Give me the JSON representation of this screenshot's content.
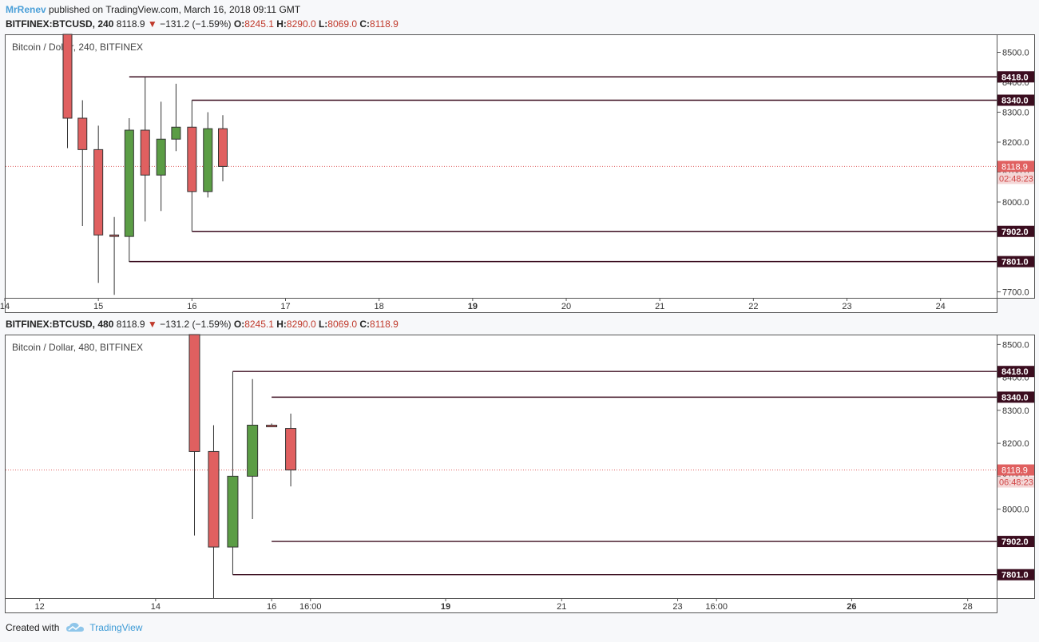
{
  "header": {
    "author": "MrRenev",
    "published_text": "published on TradingView.com, March 16, 2018 09:11 GMT"
  },
  "footer": {
    "created_with": "Created with",
    "brand": "TradingView"
  },
  "colors": {
    "up": "#5b9d45",
    "down": "#e06060",
    "level_line": "#3b0d1f",
    "level_label_bg": "#3b0d1f",
    "last_price": "#e06060"
  },
  "chart_data": [
    {
      "type": "candlestick",
      "symbol": "BITFINEX:BTCUSD",
      "interval": "240",
      "last": "8118.9",
      "change": "−131.2 (−1.59%)",
      "open": "8245.1",
      "high": "8290.0",
      "low": "8069.0",
      "close": "8118.9",
      "legend": "Bitcoin / Dollar, 240, BITFINEX",
      "ylim": [
        7680,
        8560
      ],
      "yticks": [
        7700,
        7800,
        7900,
        8000,
        8100,
        8200,
        8300,
        8400,
        8500
      ],
      "ytick_labels": [
        "7700.0",
        "7800.0",
        "7900.0",
        "8000.0",
        "8100.0",
        "8200.0",
        "8300.0",
        "8400.0",
        "8500.0"
      ],
      "xlim": [
        14,
        24.6
      ],
      "xticks": [
        14,
        15,
        16,
        17,
        18,
        19,
        20,
        21,
        22,
        23,
        24
      ],
      "xtick_labels": [
        "14",
        "15",
        "16",
        "17",
        "18",
        "19",
        "20",
        "21",
        "22",
        "23",
        "24"
      ],
      "candles": [
        {
          "x": 14.67,
          "o": 8560,
          "h": 8560,
          "l": 8180,
          "c": 8280
        },
        {
          "x": 14.83,
          "o": 8280,
          "h": 8340,
          "l": 7920,
          "c": 8175
        },
        {
          "x": 15.0,
          "o": 8175,
          "h": 8255,
          "l": 7730,
          "c": 7890
        },
        {
          "x": 15.17,
          "o": 7890,
          "h": 7950,
          "l": 7690,
          "c": 7885
        },
        {
          "x": 15.33,
          "o": 7885,
          "h": 8280,
          "l": 7800,
          "c": 8240
        },
        {
          "x": 15.5,
          "o": 8240,
          "h": 8418,
          "l": 7935,
          "c": 8090
        },
        {
          "x": 15.67,
          "o": 8090,
          "h": 8335,
          "l": 7970,
          "c": 8210
        },
        {
          "x": 15.83,
          "o": 8210,
          "h": 8395,
          "l": 8170,
          "c": 8250
        },
        {
          "x": 16.0,
          "o": 8250,
          "h": 8340,
          "l": 7902,
          "c": 8035
        },
        {
          "x": 16.17,
          "o": 8035,
          "h": 8300,
          "l": 8015,
          "c": 8245
        },
        {
          "x": 16.33,
          "o": 8245,
          "h": 8290,
          "l": 8069,
          "c": 8118.9
        }
      ],
      "levels": [
        {
          "price": 8418,
          "label": "8418.0",
          "x_start": 15.33
        },
        {
          "price": 8340,
          "label": "8340.0",
          "x_start": 16.0
        },
        {
          "price": 7902,
          "label": "7902.0",
          "x_start": 16.0
        },
        {
          "price": 7801,
          "label": "7801.0",
          "x_start": 15.33
        }
      ],
      "last_price_label": "8118.9",
      "countdown": "02:48:23"
    },
    {
      "type": "candlestick",
      "symbol": "BITFINEX:BTCUSD",
      "interval": "480",
      "last": "8118.9",
      "change": "−131.2 (−1.59%)",
      "open": "8245.1",
      "high": "8290.0",
      "low": "8069.0",
      "close": "8118.9",
      "legend": "Bitcoin / Dollar, 480, BITFINEX",
      "ylim": [
        7730,
        8530
      ],
      "yticks": [
        8000,
        8100,
        8200,
        8300,
        8400,
        8500
      ],
      "ytick_labels": [
        "8000.0",
        "8100.0",
        "8200.0",
        "8300.0",
        "8400.0",
        "8500.0"
      ],
      "xlim": [
        11.4,
        28.5
      ],
      "xticks": [
        12,
        14,
        16,
        16.67,
        19,
        21,
        23,
        23.67,
        26,
        28
      ],
      "xtick_labels": [
        "12",
        "14",
        "16",
        "16:00",
        "19",
        "21",
        "23",
        "16:00",
        "26",
        "28"
      ],
      "candles": [
        {
          "x": 14.67,
          "o": 8530,
          "h": 8530,
          "l": 7920,
          "c": 8175
        },
        {
          "x": 15.0,
          "o": 8175,
          "h": 8255,
          "l": 7730,
          "c": 7885
        },
        {
          "x": 15.33,
          "o": 7885,
          "h": 8418,
          "l": 7801,
          "c": 8100
        },
        {
          "x": 15.67,
          "o": 8100,
          "h": 8395,
          "l": 7970,
          "c": 8255
        },
        {
          "x": 16.0,
          "o": 8255,
          "h": 8260,
          "l": 8250,
          "c": 8250
        },
        {
          "x": 16.33,
          "o": 8245,
          "h": 8290,
          "l": 8069,
          "c": 8118.9
        }
      ],
      "levels": [
        {
          "price": 8418,
          "label": "8418.0",
          "x_start": 15.33
        },
        {
          "price": 8340,
          "label": "8340.0",
          "x_start": 16.0
        },
        {
          "price": 7902,
          "label": "7902.0",
          "x_start": 16.0
        },
        {
          "price": 7801,
          "label": "7801.0",
          "x_start": 15.33
        }
      ],
      "last_price_label": "8118.9",
      "countdown": "06:48:23"
    }
  ]
}
